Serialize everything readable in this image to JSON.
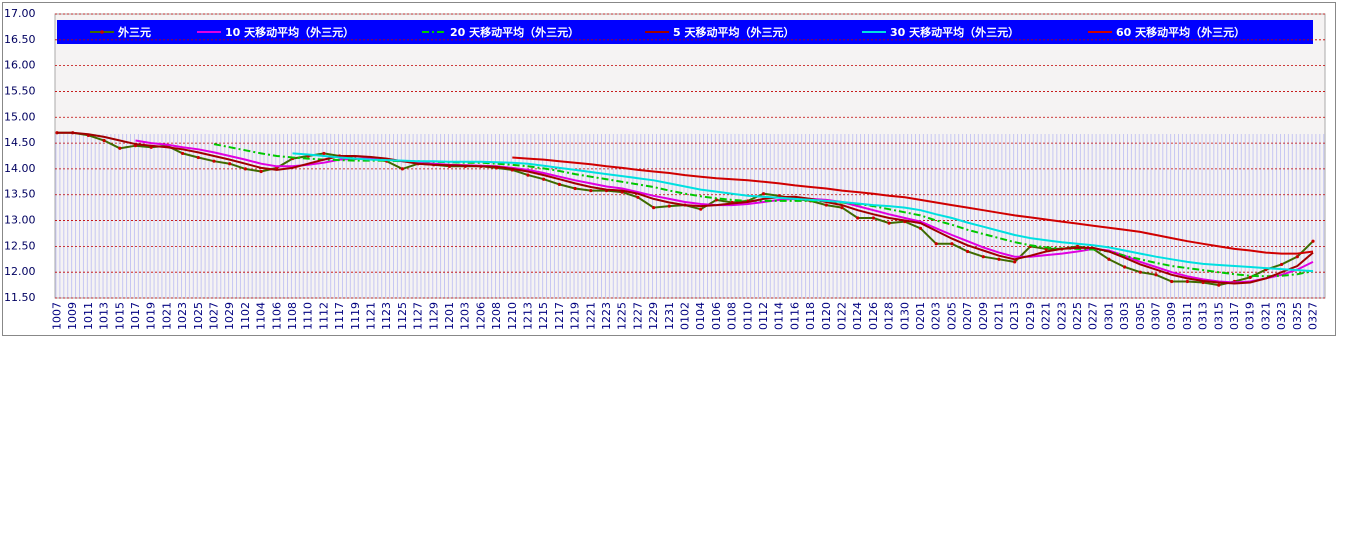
{
  "chart_data": {
    "type": "line",
    "categories": [
      "1007",
      "1009",
      "1011",
      "1013",
      "1015",
      "1017",
      "1019",
      "1021",
      "1023",
      "1025",
      "1027",
      "1029",
      "1102",
      "1104",
      "1106",
      "1108",
      "1110",
      "1112",
      "1117",
      "1119",
      "1121",
      "1123",
      "1125",
      "1127",
      "1129",
      "1201",
      "1203",
      "1206",
      "1208",
      "1210",
      "1213",
      "1215",
      "1217",
      "1219",
      "1221",
      "1223",
      "1225",
      "1227",
      "1229",
      "1231",
      "0102",
      "0104",
      "0106",
      "0108",
      "0110",
      "0112",
      "0114",
      "0116",
      "0118",
      "0120",
      "0122",
      "0124",
      "0126",
      "0128",
      "0130",
      "0201",
      "0203",
      "0205",
      "0207",
      "0209",
      "0211",
      "0213",
      "0219",
      "0221",
      "0223",
      "0225",
      "0227",
      "0301",
      "0303",
      "0305",
      "0307",
      "0309",
      "0311",
      "0313",
      "0315",
      "0317",
      "0319",
      "0321",
      "0323",
      "0325",
      "0327"
    ],
    "series": [
      {
        "name": "外三元",
        "color": "#3f6a00",
        "marker_color": "#cc0000",
        "values": [
          14.7,
          14.7,
          14.65,
          14.55,
          14.4,
          14.45,
          14.42,
          14.45,
          14.3,
          14.22,
          14.15,
          14.1,
          14.0,
          13.95,
          14.02,
          14.2,
          14.25,
          14.3,
          14.25,
          14.2,
          14.2,
          14.15,
          14.0,
          14.1,
          14.08,
          14.05,
          14.05,
          14.05,
          14.02,
          13.98,
          13.88,
          13.8,
          13.7,
          13.62,
          13.58,
          13.58,
          13.55,
          13.45,
          13.25,
          13.28,
          13.3,
          13.22,
          13.4,
          13.35,
          13.38,
          13.52,
          13.48,
          13.42,
          13.38,
          13.3,
          13.25,
          13.05,
          13.05,
          12.95,
          12.98,
          12.85,
          12.55,
          12.55,
          12.4,
          12.3,
          12.25,
          12.2,
          12.5,
          12.45,
          12.45,
          12.5,
          12.45,
          12.25,
          12.1,
          12.0,
          11.95,
          11.82,
          11.82,
          11.8,
          11.75,
          11.82,
          11.9,
          12.05,
          12.15,
          12.3,
          12.6
        ]
      },
      {
        "name": "10 天移动平均（外三元）",
        "color": "#e000e0",
        "values": [
          null,
          null,
          null,
          null,
          null,
          14.55,
          14.5,
          14.47,
          14.42,
          14.38,
          14.32,
          14.25,
          14.18,
          14.1,
          14.05,
          14.05,
          14.08,
          14.12,
          14.18,
          14.2,
          14.2,
          14.18,
          14.15,
          14.12,
          14.1,
          14.08,
          14.07,
          14.06,
          14.05,
          14.02,
          13.98,
          13.92,
          13.85,
          13.78,
          13.72,
          13.66,
          13.62,
          13.55,
          13.48,
          13.42,
          13.36,
          13.32,
          13.3,
          13.3,
          13.32,
          13.36,
          13.4,
          13.42,
          13.42,
          13.4,
          13.36,
          13.28,
          13.2,
          13.12,
          13.05,
          12.98,
          12.85,
          12.72,
          12.6,
          12.48,
          12.38,
          12.3,
          12.3,
          12.33,
          12.36,
          12.4,
          12.45,
          12.42,
          12.32,
          12.2,
          12.1,
          12.0,
          11.92,
          11.86,
          11.82,
          11.8,
          11.82,
          11.88,
          11.95,
          12.05,
          12.2
        ]
      },
      {
        "name": "20 天移动平均（外三元）",
        "color": "#00c800",
        "line_style": "dashdot",
        "values": [
          null,
          null,
          null,
          null,
          null,
          null,
          null,
          null,
          null,
          null,
          14.48,
          14.42,
          14.36,
          14.3,
          14.25,
          14.22,
          14.2,
          14.18,
          14.17,
          14.16,
          14.16,
          14.16,
          14.15,
          14.15,
          14.14,
          14.13,
          14.12,
          14.12,
          14.1,
          14.08,
          14.05,
          14.01,
          13.96,
          13.9,
          13.85,
          13.8,
          13.75,
          13.7,
          13.65,
          13.58,
          13.52,
          13.47,
          13.43,
          13.4,
          13.38,
          13.38,
          13.38,
          13.38,
          13.38,
          13.37,
          13.35,
          13.32,
          13.28,
          13.22,
          13.16,
          13.1,
          13.0,
          12.92,
          12.82,
          12.74,
          12.66,
          12.58,
          12.52,
          12.48,
          12.46,
          12.45,
          12.44,
          12.4,
          12.32,
          12.25,
          12.18,
          12.12,
          12.08,
          12.04,
          12.0,
          11.96,
          11.93,
          11.92,
          11.93,
          11.96,
          12.02
        ]
      },
      {
        "name": "5 天移动平均（外三元）",
        "color": "#a00000",
        "values": [
          14.7,
          14.7,
          14.67,
          14.62,
          14.55,
          14.48,
          14.45,
          14.42,
          14.38,
          14.32,
          14.25,
          14.18,
          14.1,
          14.02,
          13.98,
          14.02,
          14.1,
          14.18,
          14.25,
          14.25,
          14.23,
          14.2,
          14.15,
          14.1,
          14.08,
          14.07,
          14.06,
          14.05,
          14.04,
          14.0,
          13.95,
          13.88,
          13.8,
          13.72,
          13.65,
          13.6,
          13.58,
          13.52,
          13.42,
          13.35,
          13.3,
          13.28,
          13.3,
          13.33,
          13.36,
          13.42,
          13.45,
          13.46,
          13.42,
          13.36,
          13.3,
          13.2,
          13.12,
          13.05,
          13.0,
          12.95,
          12.8,
          12.65,
          12.52,
          12.42,
          12.32,
          12.25,
          12.32,
          12.4,
          12.45,
          12.47,
          12.47,
          12.4,
          12.28,
          12.15,
          12.05,
          11.95,
          11.88,
          11.83,
          11.8,
          11.78,
          11.8,
          11.88,
          12.0,
          12.12,
          12.38
        ]
      },
      {
        "name": "30 天移动平均（外三元）",
        "color": "#00e0e0",
        "values": [
          null,
          null,
          null,
          null,
          null,
          null,
          null,
          null,
          null,
          null,
          null,
          null,
          null,
          null,
          null,
          14.3,
          14.28,
          14.25,
          14.22,
          14.2,
          14.18,
          14.17,
          14.16,
          14.15,
          14.15,
          14.14,
          14.14,
          14.14,
          14.13,
          14.12,
          14.1,
          14.06,
          14.02,
          13.98,
          13.94,
          13.9,
          13.86,
          13.82,
          13.78,
          13.72,
          13.66,
          13.6,
          13.56,
          13.52,
          13.48,
          13.46,
          13.44,
          13.42,
          13.4,
          13.38,
          13.36,
          13.33,
          13.3,
          13.28,
          13.25,
          13.2,
          13.12,
          13.05,
          12.96,
          12.88,
          12.8,
          12.72,
          12.66,
          12.62,
          12.58,
          12.55,
          12.52,
          12.48,
          12.42,
          12.36,
          12.3,
          12.25,
          12.2,
          12.16,
          12.14,
          12.12,
          12.1,
          12.08,
          12.06,
          12.04,
          12.02
        ]
      },
      {
        "name": "60 天移动平均（外三元）",
        "color": "#d00000",
        "values": [
          null,
          null,
          null,
          null,
          null,
          null,
          null,
          null,
          null,
          null,
          null,
          null,
          null,
          null,
          null,
          null,
          null,
          null,
          null,
          null,
          null,
          null,
          null,
          null,
          null,
          null,
          null,
          null,
          null,
          14.22,
          14.2,
          14.18,
          14.15,
          14.12,
          14.09,
          14.05,
          14.02,
          13.98,
          13.95,
          13.92,
          13.88,
          13.85,
          13.82,
          13.8,
          13.78,
          13.75,
          13.72,
          13.68,
          13.65,
          13.62,
          13.58,
          13.55,
          13.52,
          13.48,
          13.45,
          13.4,
          13.35,
          13.3,
          13.25,
          13.2,
          13.15,
          13.1,
          13.06,
          13.02,
          12.98,
          12.94,
          12.9,
          12.86,
          12.82,
          12.78,
          12.72,
          12.66,
          12.6,
          12.55,
          12.5,
          12.45,
          12.42,
          12.38,
          12.36,
          12.36,
          12.4
        ]
      }
    ],
    "ylim": [
      11.5,
      17
    ],
    "yticks": [
      {
        "value": 11.5,
        "label": "11.50"
      },
      {
        "value": 12,
        "label": "12.00"
      },
      {
        "value": 12.5,
        "label": "12.50"
      },
      {
        "value": 13,
        "label": "13.00"
      },
      {
        "value": 13.5,
        "label": "13.50"
      },
      {
        "value": 14,
        "label": "14.00"
      },
      {
        "value": 14.5,
        "label": "14.50"
      },
      {
        "value": 15,
        "label": "15.00"
      },
      {
        "value": 15.5,
        "label": "15.50"
      },
      {
        "value": 16,
        "label": "16.00"
      },
      {
        "value": 16.5,
        "label": "16.50"
      },
      {
        "value": 17,
        "label": "17.00"
      }
    ],
    "grid": true
  }
}
